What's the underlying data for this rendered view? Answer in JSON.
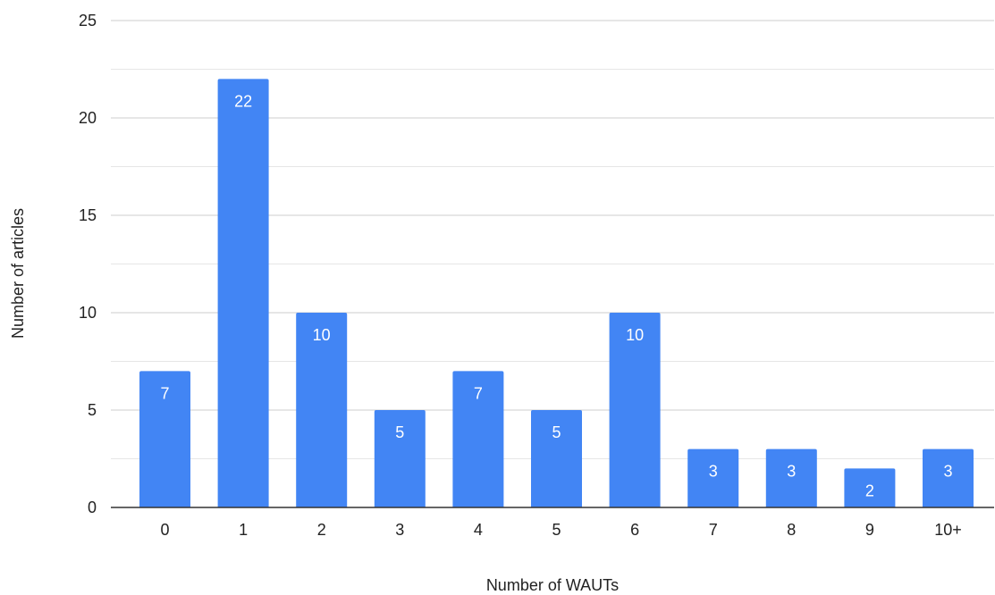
{
  "chart_data": {
    "type": "bar",
    "title": "",
    "xlabel": "Number of WAUTs",
    "ylabel": "Number of articles",
    "categories": [
      "0",
      "1",
      "2",
      "3",
      "4",
      "5",
      "6",
      "7",
      "8",
      "9",
      "10+"
    ],
    "values": [
      7,
      22,
      10,
      5,
      7,
      5,
      10,
      3,
      3,
      2,
      3
    ],
    "data_labels": [
      "7",
      "22",
      "10",
      "5",
      "7",
      "5",
      "10",
      "3",
      "3",
      "2",
      "3"
    ],
    "ylim": [
      0,
      25
    ],
    "yticks": [
      0,
      5,
      10,
      15,
      20,
      25
    ],
    "ytick_labels": [
      "0",
      "5",
      "10",
      "15",
      "20",
      "25"
    ],
    "minor_gridlines_per_major": 1,
    "grid": true,
    "legend": "none",
    "colors": {
      "bar": "#4285F4",
      "major_grid": "#cccccc",
      "minor_grid": "#e6e6e6",
      "baseline": "#333333",
      "text": "#222222",
      "bar_label": "#ffffff"
    }
  }
}
